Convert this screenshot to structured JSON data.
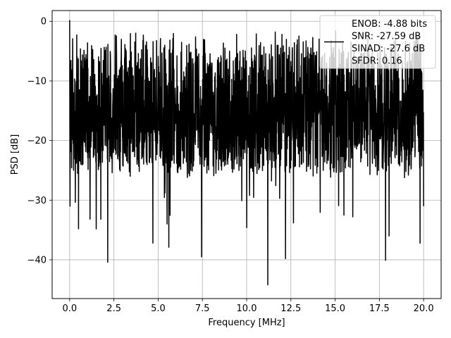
{
  "chart_data": {
    "type": "line",
    "title": "",
    "xlabel": "Frequency [MHz]",
    "ylabel": "PSD [dB]",
    "xlim": [
      -0.99,
      20.99
    ],
    "ylim": [
      -46.5,
      1.8
    ],
    "xticks": [
      0.0,
      2.5,
      5.0,
      7.5,
      10.0,
      12.5,
      15.0,
      17.5,
      20.0
    ],
    "xtick_labels": [
      "0.0",
      "2.5",
      "5.0",
      "7.5",
      "10.0",
      "12.5",
      "15.0",
      "17.5",
      "20.0"
    ],
    "yticks": [
      0,
      -10,
      -20,
      -30,
      -40
    ],
    "ytick_labels": [
      "0",
      "−10",
      "−20",
      "−30",
      "−40"
    ],
    "grid": true,
    "series": [
      {
        "color": "#000000",
        "x_range": [
          0.0,
          20.0
        ],
        "n_points": 2000,
        "envelope": {
          "upper_db": -3.5,
          "typical_low_db": -25,
          "peak_db": 0.2
        },
        "notable_points": [
          {
            "x": 0.0,
            "y": 0.2
          },
          {
            "x": 0.02,
            "y": -31.0
          },
          {
            "x": 0.5,
            "y": -34.8
          },
          {
            "x": 2.15,
            "y": -40.4
          },
          {
            "x": 4.7,
            "y": -37.2
          },
          {
            "x": 5.5,
            "y": -34.0
          },
          {
            "x": 5.6,
            "y": -37.9
          },
          {
            "x": 7.45,
            "y": -39.5
          },
          {
            "x": 10.0,
            "y": -34.6
          },
          {
            "x": 11.2,
            "y": -44.2
          },
          {
            "x": 12.2,
            "y": -39.8
          },
          {
            "x": 15.5,
            "y": -32.5
          },
          {
            "x": 16.0,
            "y": -32.8
          },
          {
            "x": 17.85,
            "y": -40.1
          },
          {
            "x": 18.05,
            "y": -36.0
          },
          {
            "x": 19.8,
            "y": -37.2
          },
          {
            "x": 20.0,
            "y": -31.0
          }
        ]
      }
    ],
    "legend": {
      "placement": "upper right",
      "entries": [
        "ENOB: -4.88 bits",
        "SNR: -27.59 dB",
        "SINAD: -27.6 dB",
        "SFDR: 0.16"
      ]
    }
  }
}
